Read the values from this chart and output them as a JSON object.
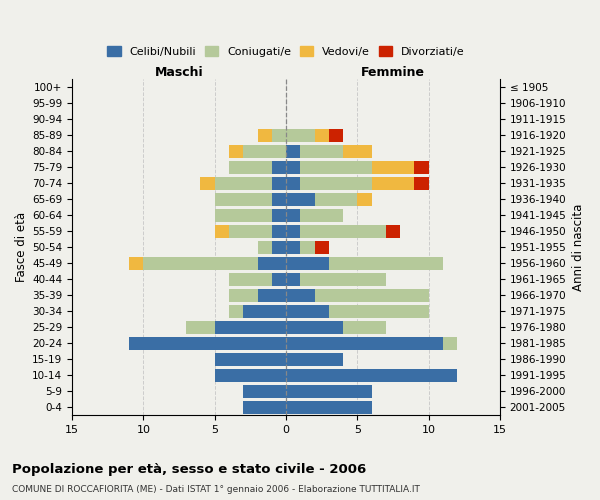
{
  "age_groups": [
    "0-4",
    "5-9",
    "10-14",
    "15-19",
    "20-24",
    "25-29",
    "30-34",
    "35-39",
    "40-44",
    "45-49",
    "50-54",
    "55-59",
    "60-64",
    "65-69",
    "70-74",
    "75-79",
    "80-84",
    "85-89",
    "90-94",
    "95-99",
    "100+"
  ],
  "birth_years": [
    "2001-2005",
    "1996-2000",
    "1991-1995",
    "1986-1990",
    "1981-1985",
    "1976-1980",
    "1971-1975",
    "1966-1970",
    "1961-1965",
    "1956-1960",
    "1951-1955",
    "1946-1950",
    "1941-1945",
    "1936-1940",
    "1931-1935",
    "1926-1930",
    "1921-1925",
    "1916-1920",
    "1911-1915",
    "1906-1910",
    "≤ 1905"
  ],
  "colors": {
    "celibi": "#3a6ea5",
    "coniugati": "#b5c99a",
    "vedovi": "#f0b840",
    "divorziati": "#cc2200"
  },
  "maschi": {
    "celibi": [
      3,
      3,
      5,
      5,
      11,
      5,
      3,
      2,
      1,
      2,
      1,
      1,
      1,
      1,
      1,
      1,
      0,
      0,
      0,
      0,
      0
    ],
    "coniugati": [
      0,
      0,
      0,
      0,
      0,
      2,
      1,
      2,
      3,
      8,
      1,
      3,
      4,
      4,
      4,
      3,
      3,
      1,
      0,
      0,
      0
    ],
    "vedovi": [
      0,
      0,
      0,
      0,
      0,
      0,
      0,
      0,
      0,
      1,
      0,
      1,
      0,
      0,
      1,
      0,
      1,
      1,
      0,
      0,
      0
    ],
    "divorziati": [
      0,
      0,
      0,
      0,
      0,
      0,
      0,
      0,
      0,
      0,
      0,
      0,
      0,
      0,
      0,
      0,
      0,
      0,
      0,
      0,
      0
    ]
  },
  "femmine": {
    "celibi": [
      6,
      6,
      12,
      4,
      11,
      4,
      3,
      2,
      1,
      3,
      1,
      1,
      1,
      2,
      1,
      1,
      1,
      0,
      0,
      0,
      0
    ],
    "coniugati": [
      0,
      0,
      0,
      0,
      1,
      3,
      7,
      8,
      6,
      8,
      1,
      6,
      3,
      3,
      5,
      5,
      3,
      2,
      0,
      0,
      0
    ],
    "vedovi": [
      0,
      0,
      0,
      0,
      0,
      0,
      0,
      0,
      0,
      0,
      0,
      0,
      0,
      1,
      3,
      3,
      2,
      1,
      0,
      0,
      0
    ],
    "divorziati": [
      0,
      0,
      0,
      0,
      0,
      0,
      0,
      0,
      0,
      0,
      1,
      1,
      0,
      0,
      1,
      1,
      0,
      1,
      0,
      0,
      0
    ]
  },
  "xlim": 15,
  "title": "Popolazione per età, sesso e stato civile - 2006",
  "subtitle": "COMUNE DI ROCCAFIORITA (ME) - Dati ISTAT 1° gennaio 2006 - Elaborazione TUTTITALIA.IT",
  "ylabel_left": "Fasce di età",
  "ylabel_right": "Anni di nascita",
  "xlabel_left": "Maschi",
  "xlabel_right": "Femmine",
  "legend_labels": [
    "Celibi/Nubili",
    "Coniugati/e",
    "Vedovi/e",
    "Divorziati/e"
  ],
  "bg_color": "#f0f0eb"
}
